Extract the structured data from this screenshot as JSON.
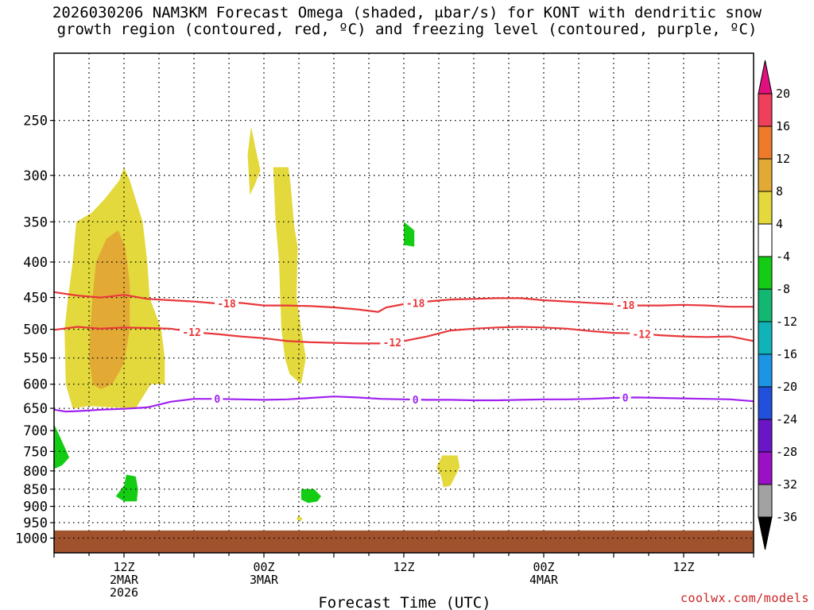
{
  "title_line1": "2026030206 NAM3KM Forecast Omega (shaded, μbar/s) for KONT with dendritic snow",
  "title_line2": "growth region (contoured, red, ºC) and freezing level (contoured, purple, ºC)",
  "credit": "coolwx.com/models",
  "chart_data": {
    "type": "contour",
    "title": "2026030206 NAM3KM Forecast Omega (shaded, μbar/s) for KONT with dendritic snow growth region (contoured, red, ºC) and freezing level (contoured, purple, ºC)",
    "xlabel": "Forecast Time (UTC)",
    "ylabel": "",
    "x_ticks": [
      {
        "hour": 6,
        "lines": [
          "12Z",
          "2MAR",
          "2026"
        ]
      },
      {
        "hour": 18,
        "lines": [
          "00Z",
          "3MAR"
        ]
      },
      {
        "hour": 30,
        "lines": [
          "12Z"
        ]
      },
      {
        "hour": 42,
        "lines": [
          "00Z",
          "4MAR"
        ]
      },
      {
        "hour": 54,
        "lines": [
          "12Z"
        ]
      }
    ],
    "xlim": [
      0,
      60
    ],
    "y_scale": "log-pressure",
    "ylim": [
      1050,
      200
    ],
    "y_ticks": [
      250,
      300,
      350,
      400,
      450,
      500,
      550,
      600,
      650,
      700,
      750,
      800,
      850,
      900,
      950,
      1000
    ],
    "grid": true,
    "colorbar": {
      "unit": "μbar/s",
      "labels": [
        "20",
        "16",
        "12",
        "8",
        "4",
        "-4",
        "-8",
        "-12",
        "-16",
        "-20",
        "-24",
        "-28",
        "-32",
        "-36"
      ],
      "colors": [
        "#ef3f5a",
        "#ee7a2a",
        "#e2aa35",
        "#e3d93c",
        "#ffffff",
        "#14cc14",
        "#12b872",
        "#10b4b8",
        "#1c96e4",
        "#2050dc",
        "#6a16c8",
        "#9a10c4",
        "#a2a2a2"
      ],
      "top_color": "#e0107e",
      "bottom_color": "#000000"
    },
    "omega_regions": [
      {
        "level": 4,
        "color": "#e3d93c",
        "points": [
          [
            1.6,
            650
          ],
          [
            1.0,
            600
          ],
          [
            0.9,
            500
          ],
          [
            1.2,
            450
          ],
          [
            1.6,
            400
          ],
          [
            1.9,
            350
          ],
          [
            3.2,
            340
          ],
          [
            4.3,
            325
          ],
          [
            5.6,
            305
          ],
          [
            6.0,
            292
          ],
          [
            6.5,
            305
          ],
          [
            7.0,
            325
          ],
          [
            7.6,
            350
          ],
          [
            8.0,
            400
          ],
          [
            8.2,
            450
          ],
          [
            9.2,
            500
          ],
          [
            9.5,
            550
          ],
          [
            9.5,
            600
          ],
          [
            8.3,
            600
          ],
          [
            7.0,
            650
          ],
          [
            5.0,
            648
          ],
          [
            3.0,
            645
          ]
        ]
      },
      {
        "level": 8,
        "color": "#e2aa35",
        "points": [
          [
            3.3,
            600
          ],
          [
            3.0,
            550
          ],
          [
            3.1,
            500
          ],
          [
            3.3,
            450
          ],
          [
            3.6,
            400
          ],
          [
            4.5,
            370
          ],
          [
            5.5,
            360
          ],
          [
            6.1,
            380
          ],
          [
            6.5,
            430
          ],
          [
            6.5,
            500
          ],
          [
            6.0,
            560
          ],
          [
            5.0,
            600
          ],
          [
            4.0,
            610
          ]
        ]
      },
      {
        "level": 4,
        "color": "#e3d93c",
        "points": [
          [
            16.9,
            255
          ],
          [
            17.3,
            275
          ],
          [
            17.7,
            295
          ],
          [
            17.2,
            310
          ],
          [
            16.8,
            320
          ],
          [
            16.6,
            280
          ]
        ]
      },
      {
        "level": 4,
        "color": "#e3d93c",
        "points": [
          [
            18.8,
            292
          ],
          [
            20.1,
            292
          ],
          [
            20.3,
            310
          ],
          [
            20.6,
            355
          ],
          [
            20.9,
            380
          ],
          [
            20.8,
            450
          ],
          [
            21.2,
            500
          ],
          [
            21.6,
            550
          ],
          [
            21.2,
            600
          ],
          [
            20.2,
            580
          ],
          [
            19.8,
            550
          ],
          [
            19.5,
            500
          ],
          [
            19.4,
            450
          ],
          [
            19.3,
            400
          ],
          [
            19.0,
            350
          ]
        ]
      },
      {
        "level": 4,
        "color": "#e3d93c",
        "points": [
          [
            20.9,
            930
          ],
          [
            21.3,
            935
          ],
          [
            21.2,
            945
          ],
          [
            20.8,
            940
          ]
        ]
      },
      {
        "level": 4,
        "color": "#e3d93c",
        "points": [
          [
            33.3,
            760
          ],
          [
            34.6,
            760
          ],
          [
            34.8,
            790
          ],
          [
            34.4,
            815
          ],
          [
            34.0,
            840
          ],
          [
            33.4,
            845
          ],
          [
            33.2,
            815
          ],
          [
            32.8,
            790
          ]
        ]
      },
      {
        "level": -4,
        "color": "#14cc14",
        "points": [
          [
            30.0,
            350
          ],
          [
            30.9,
            360
          ],
          [
            30.9,
            380
          ],
          [
            30.0,
            378
          ]
        ]
      },
      {
        "level": -4,
        "color": "#14cc14",
        "points": [
          [
            0.0,
            685
          ],
          [
            0.6,
            720
          ],
          [
            1.3,
            765
          ],
          [
            0.7,
            785
          ],
          [
            0.0,
            795
          ]
        ]
      },
      {
        "level": -4,
        "color": "#14cc14",
        "points": [
          [
            6.2,
            810
          ],
          [
            7.0,
            815
          ],
          [
            7.2,
            850
          ],
          [
            7.1,
            885
          ],
          [
            6.0,
            885
          ],
          [
            5.3,
            870
          ],
          [
            6.0,
            840
          ]
        ]
      },
      {
        "level": -4,
        "color": "#14cc14",
        "points": [
          [
            21.2,
            850
          ],
          [
            22.3,
            850
          ],
          [
            22.9,
            870
          ],
          [
            22.6,
            885
          ],
          [
            21.8,
            890
          ],
          [
            21.2,
            880
          ]
        ]
      }
    ],
    "ground_level": 975,
    "ground_color": "#a0522d",
    "contours": [
      {
        "name": "-18",
        "color": "#e8373b",
        "label_positions": [
          14.8,
          31.0,
          49.0
        ],
        "x": [
          0,
          2,
          4,
          6,
          8,
          10,
          12,
          14,
          16,
          18,
          20,
          22,
          24,
          26,
          27.8,
          28.5,
          30,
          32,
          34,
          36,
          38,
          40,
          42,
          44,
          46,
          48,
          50,
          52,
          54,
          56,
          58,
          60
        ],
        "y": [
          442,
          447,
          450,
          446,
          452,
          454,
          456,
          459,
          458,
          462,
          462,
          463,
          465,
          468,
          472,
          465,
          460,
          456,
          453,
          452,
          451,
          451,
          454,
          456,
          458,
          460,
          462,
          462,
          461,
          462,
          464,
          464
        ]
      },
      {
        "name": "-12",
        "color": "#e8373b",
        "label_positions": [
          11.8,
          29.0,
          50.4
        ],
        "x": [
          0,
          2,
          4,
          6,
          8,
          10,
          12,
          14,
          16,
          18,
          20,
          22,
          24,
          26,
          28,
          30,
          32,
          34,
          36,
          38,
          40,
          42,
          44,
          46,
          48,
          50,
          52,
          54,
          56,
          58,
          60
        ],
        "y": [
          501,
          496,
          499,
          497,
          498,
          499,
          505,
          508,
          512,
          515,
          520,
          522,
          523,
          524,
          524,
          520,
          512,
          502,
          499,
          497,
          496,
          497,
          499,
          503,
          506,
          507,
          510,
          512,
          513,
          512,
          520
        ]
      },
      {
        "name": "0",
        "color": "#a020f0",
        "label_positions": [
          14.0,
          31.0,
          49.0
        ],
        "x": [
          0,
          1,
          2,
          4,
          6,
          8,
          9,
          10,
          12,
          14,
          16,
          18,
          20,
          22,
          24,
          26,
          28,
          30,
          32,
          34,
          36,
          38,
          40,
          42,
          44,
          46,
          48,
          50,
          52,
          54,
          56,
          58,
          60
        ],
        "y": [
          653,
          657,
          656,
          653,
          651,
          648,
          642,
          636,
          630,
          630,
          631,
          632,
          631,
          628,
          625,
          627,
          630,
          631,
          632,
          632,
          633,
          633,
          632,
          631,
          631,
          630,
          628,
          627,
          628,
          629,
          630,
          631,
          635
        ]
      }
    ]
  }
}
